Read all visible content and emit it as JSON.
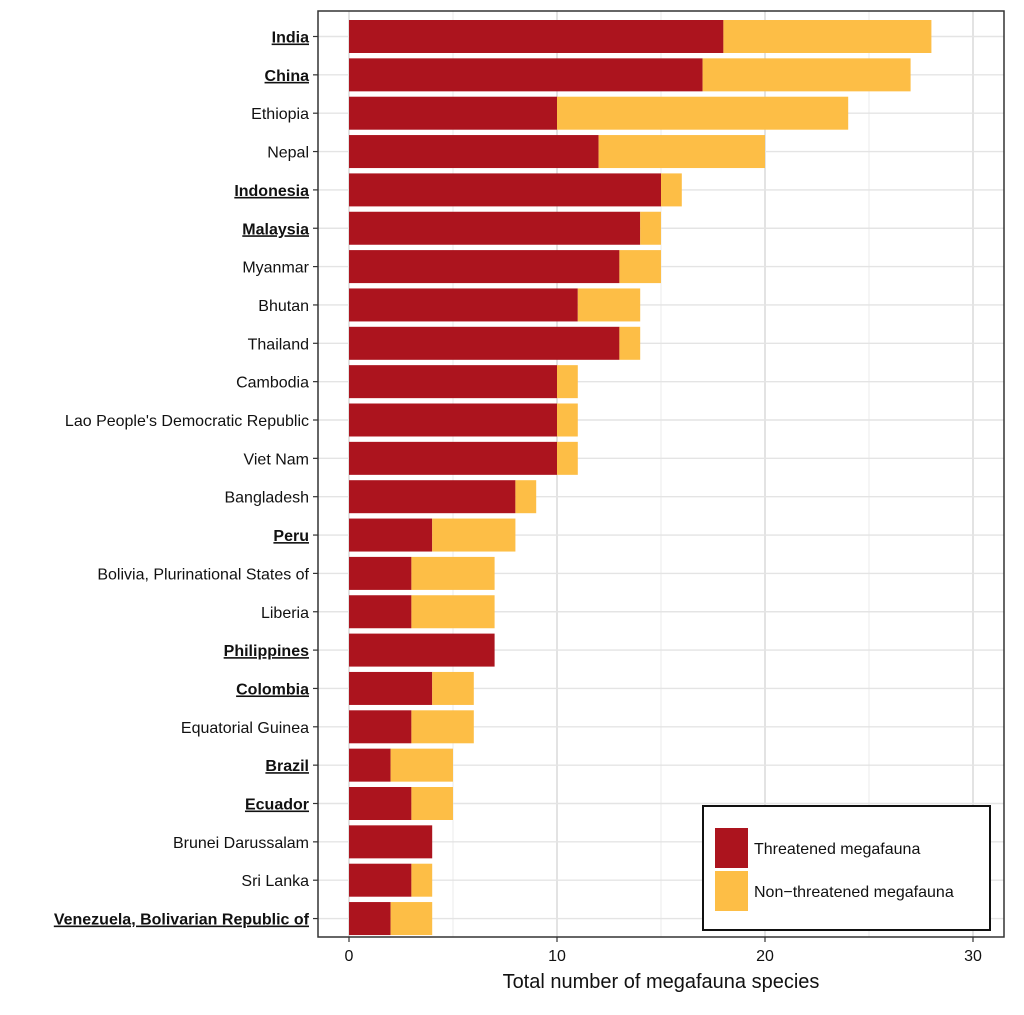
{
  "chart_data": {
    "type": "bar",
    "orientation": "horizontal",
    "stacked": true,
    "xlabel": "Total number of megafauna species",
    "ylabel": "",
    "xlim": [
      0,
      30
    ],
    "x_ticks": [
      0,
      10,
      20,
      30
    ],
    "grid": true,
    "legend_position": "bottom-right",
    "categories": [
      "India",
      "China",
      "Ethiopia",
      "Nepal",
      "Indonesia",
      "Malaysia",
      "Myanmar",
      "Bhutan",
      "Thailand",
      "Cambodia",
      "Lao People's Democratic Republic",
      "Viet Nam",
      "Bangladesh",
      "Peru",
      "Bolivia, Plurinational States of",
      "Liberia",
      "Philippines",
      "Colombia",
      "Equatorial Guinea",
      "Brazil",
      "Ecuador",
      "Brunei Darussalam",
      "Sri Lanka",
      "Venezuela, Bolivarian Republic of"
    ],
    "highlighted_categories": [
      "India",
      "China",
      "Indonesia",
      "Malaysia",
      "Peru",
      "Philippines",
      "Colombia",
      "Brazil",
      "Ecuador",
      "Venezuela, Bolivarian Republic of"
    ],
    "series": [
      {
        "name": "Threatened megafauna",
        "color": "#ac141e",
        "values": [
          18,
          17,
          10,
          12,
          15,
          14,
          13,
          11,
          13,
          10,
          10,
          10,
          8,
          4,
          3,
          3,
          7,
          4,
          3,
          2,
          3,
          4,
          3,
          2
        ]
      },
      {
        "name": "Non−threatened megafauna",
        "color": "#fdbe46",
        "values": [
          10,
          10,
          14,
          8,
          1,
          1,
          2,
          3,
          1,
          1,
          1,
          1,
          1,
          4,
          4,
          4,
          0,
          2,
          3,
          3,
          2,
          0,
          1,
          2
        ]
      }
    ]
  }
}
